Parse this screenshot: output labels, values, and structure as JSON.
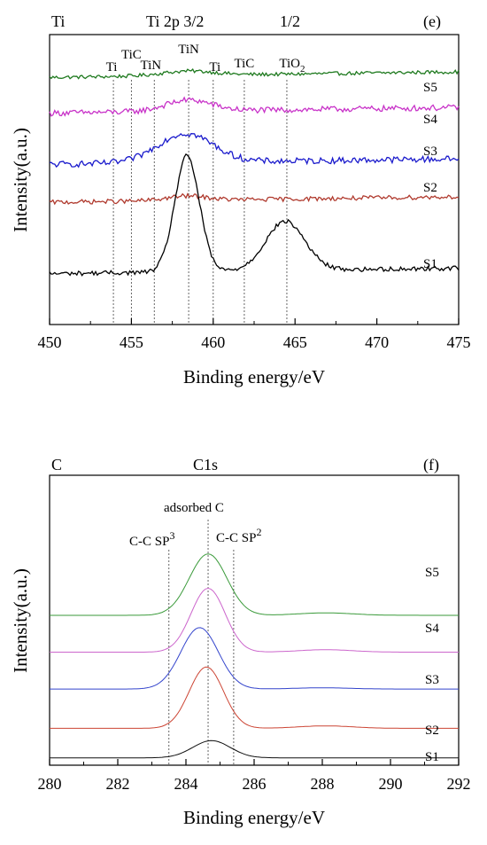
{
  "chart_data": [
    {
      "type": "line",
      "panel_label": "(e)",
      "element": "Ti",
      "heading": "Ti 2p 3/2",
      "heading2": "1/2",
      "xlabel": "Binding energy/eV",
      "ylabel": "Intensity(a.u.)",
      "xlim": [
        450,
        475
      ],
      "x_ticks": [
        450,
        455,
        460,
        465,
        470,
        475
      ],
      "reference_lines": [
        {
          "label": "Ti",
          "x": 453.9
        },
        {
          "label": "TiC",
          "x": 455.0
        },
        {
          "label": "TiN",
          "x": 456.4
        },
        {
          "label": "TiN",
          "x": 458.5
        },
        {
          "label": "Ti",
          "x": 460.0
        },
        {
          "label": "TiC",
          "x": 461.9
        },
        {
          "label": "TiO2",
          "x": 464.5
        }
      ],
      "series": [
        {
          "name": "S5",
          "color": "#1f7a1f",
          "kind": "noisy",
          "baseline": 0.82,
          "amp": 0.008,
          "peaks": [
            [
              458.5,
              0.02,
              1.6
            ]
          ]
        },
        {
          "name": "S4",
          "color": "#c832c8",
          "kind": "noisy",
          "baseline": 0.66,
          "amp": 0.013,
          "peaks": [
            [
              458.5,
              0.05,
              1.4
            ]
          ]
        },
        {
          "name": "S3",
          "color": "#1a1acc",
          "kind": "noisy",
          "baseline": 0.43,
          "amp": 0.014,
          "peaks": [
            [
              458.3,
              0.13,
              1.7
            ]
          ]
        },
        {
          "name": "S2",
          "color": "#b03a2e",
          "kind": "noisy",
          "baseline": 0.26,
          "amp": 0.01,
          "peaks": [
            [
              458.4,
              0.02,
              1.2
            ]
          ]
        },
        {
          "name": "S1",
          "color": "#000000",
          "kind": "noisy",
          "baseline": -0.06,
          "amp": 0.01,
          "peaks": [
            [
              458.4,
              0.52,
              0.75
            ],
            [
              464.4,
              0.22,
              1.2
            ]
          ]
        }
      ]
    },
    {
      "type": "line",
      "panel_label": "(f)",
      "element": "C",
      "heading": "C1s",
      "annotation": "adsorbed C",
      "sp3_label": "C-C SP",
      "sp3_sup": "3",
      "sp2_label": "C-C SP",
      "sp2_sup": "2",
      "xlabel": "Binding energy/eV",
      "ylabel": "Intensity(a.u.)",
      "xlim": [
        280,
        292
      ],
      "x_ticks": [
        280,
        282,
        284,
        286,
        288,
        290,
        292
      ],
      "reference_lines": [
        {
          "label": "C-C SP3",
          "x": 283.5
        },
        {
          "label": "adsorbed C",
          "x": 284.65
        },
        {
          "label": "C-C SP2",
          "x": 285.4
        }
      ],
      "series": [
        {
          "name": "S5",
          "color": "#3a9a3a",
          "baseline": 0.58,
          "peaks": [
            [
              284.65,
              0.25,
              0.55
            ],
            [
              288.1,
              0.01,
              0.8
            ]
          ]
        },
        {
          "name": "S4",
          "color": "#cc66cc",
          "baseline": 0.43,
          "peaks": [
            [
              284.65,
              0.26,
              0.5
            ],
            [
              288.1,
              0.01,
              0.8
            ]
          ]
        },
        {
          "name": "S3",
          "color": "#3344cc",
          "baseline": 0.28,
          "peaks": [
            [
              284.4,
              0.25,
              0.55
            ],
            [
              288.0,
              0.005,
              0.8
            ]
          ]
        },
        {
          "name": "S2",
          "color": "#cc4433",
          "baseline": 0.12,
          "peaks": [
            [
              284.6,
              0.25,
              0.5
            ],
            [
              288.1,
              0.01,
              0.8
            ]
          ]
        },
        {
          "name": "S1",
          "color": "#111111",
          "baseline": 0.0,
          "peaks": [
            [
              284.75,
              0.07,
              0.55
            ]
          ]
        }
      ]
    }
  ]
}
